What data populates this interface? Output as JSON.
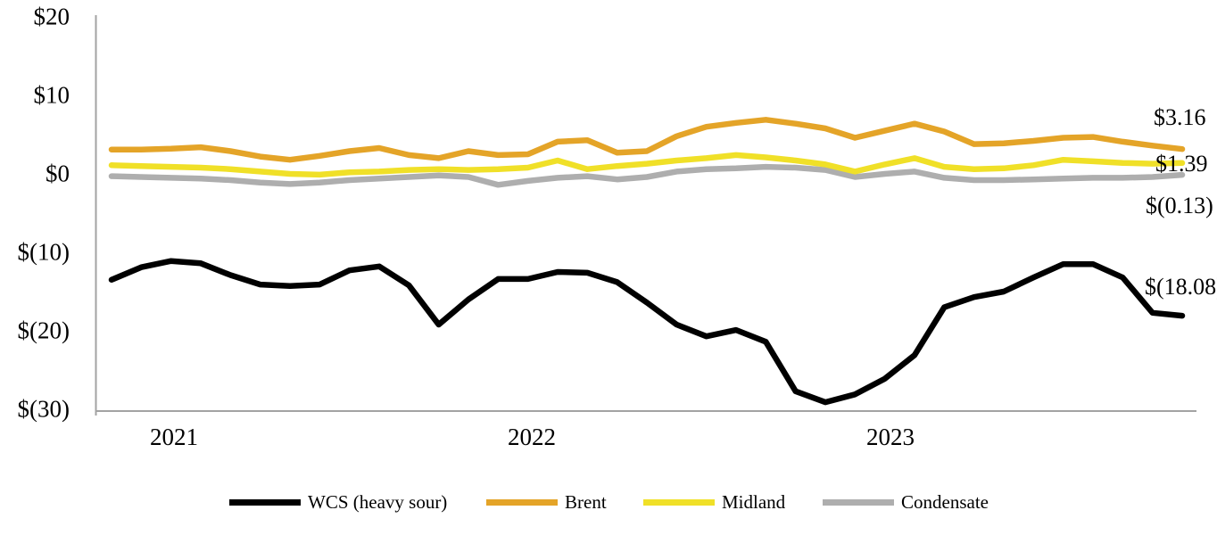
{
  "chart_data": {
    "type": "line",
    "title": "",
    "xlabel": "",
    "ylabel": "",
    "ylim": [
      -30,
      20
    ],
    "grid": false,
    "legend_position": "bottom",
    "axis_color": "#a3a3a3",
    "x_tick_labels": [
      "2021",
      "2022",
      "2023"
    ],
    "y_ticks": [
      {
        "label": "$20",
        "value": 20
      },
      {
        "label": "$10",
        "value": 10
      },
      {
        "label": "$0",
        "value": 0
      },
      {
        "label": "$(10)",
        "value": -10
      },
      {
        "label": "$(20)",
        "value": -20
      },
      {
        "label": "$(30)",
        "value": -30
      }
    ],
    "x_months": [
      "Dec-2020",
      "Jan-2021",
      "Feb-2021",
      "Mar-2021",
      "Apr-2021",
      "May-2021",
      "Jun-2021",
      "Jul-2021",
      "Aug-2021",
      "Sep-2021",
      "Oct-2021",
      "Nov-2021",
      "Dec-2021",
      "Jan-2022",
      "Feb-2022",
      "Mar-2022",
      "Apr-2022",
      "May-2022",
      "Jun-2022",
      "Jul-2022",
      "Aug-2022",
      "Sep-2022",
      "Oct-2022",
      "Nov-2022",
      "Dec-2022",
      "Jan-2023",
      "Feb-2023",
      "Mar-2023",
      "Apr-2023",
      "May-2023",
      "Jun-2023",
      "Jul-2023",
      "Aug-2023",
      "Sep-2023",
      "Oct-2023",
      "Nov-2023",
      "Dec-2023"
    ],
    "series": [
      {
        "name": "WCS (heavy sour)",
        "color": "#000000",
        "end_label": "$(18.08)",
        "values": [
          -13.5,
          -11.9,
          -11.1,
          -11.4,
          -12.9,
          -14.1,
          -14.3,
          -14.1,
          -12.3,
          -11.8,
          -14.2,
          -19.2,
          -16.0,
          -13.4,
          -13.4,
          -12.5,
          -12.6,
          -13.8,
          -16.4,
          -19.2,
          -20.7,
          -19.9,
          -21.4,
          -27.7,
          -29.1,
          -28.1,
          -26.1,
          -23.1,
          -17.0,
          -15.7,
          -15.0,
          -13.2,
          -11.5,
          -11.5,
          -13.2,
          -17.7,
          -18.08
        ]
      },
      {
        "name": "Brent",
        "color": "#e4a428",
        "end_label": "$3.16",
        "values": [
          3.1,
          3.1,
          3.2,
          3.4,
          2.9,
          2.2,
          1.8,
          2.3,
          2.9,
          3.3,
          2.4,
          2.0,
          2.9,
          2.4,
          2.5,
          4.1,
          4.3,
          2.7,
          2.9,
          4.8,
          6.0,
          6.5,
          6.9,
          6.4,
          5.8,
          4.6,
          5.5,
          6.4,
          5.4,
          3.8,
          3.9,
          4.2,
          4.6,
          4.7,
          4.1,
          3.6,
          3.16
        ]
      },
      {
        "name": "Midland",
        "color": "#f0e028",
        "end_label": "$1.39",
        "values": [
          1.1,
          1.0,
          0.9,
          0.8,
          0.6,
          0.3,
          0.0,
          -0.1,
          0.2,
          0.3,
          0.5,
          0.6,
          0.5,
          0.6,
          0.8,
          1.7,
          0.6,
          1.0,
          1.3,
          1.7,
          2.0,
          2.4,
          2.1,
          1.7,
          1.2,
          0.3,
          1.2,
          2.0,
          0.9,
          0.6,
          0.7,
          1.1,
          1.8,
          1.6,
          1.4,
          1.3,
          1.39
        ]
      },
      {
        "name": "Condensate",
        "color": "#aeaeae",
        "end_label": "$(0.13)",
        "values": [
          -0.3,
          -0.4,
          -0.5,
          -0.6,
          -0.8,
          -1.1,
          -1.3,
          -1.1,
          -0.8,
          -0.6,
          -0.4,
          -0.2,
          -0.4,
          -1.4,
          -0.9,
          -0.5,
          -0.3,
          -0.7,
          -0.4,
          0.3,
          0.6,
          0.7,
          0.9,
          0.8,
          0.5,
          -0.4,
          0.0,
          0.3,
          -0.5,
          -0.8,
          -0.8,
          -0.7,
          -0.6,
          -0.5,
          -0.5,
          -0.4,
          -0.13
        ]
      }
    ]
  }
}
